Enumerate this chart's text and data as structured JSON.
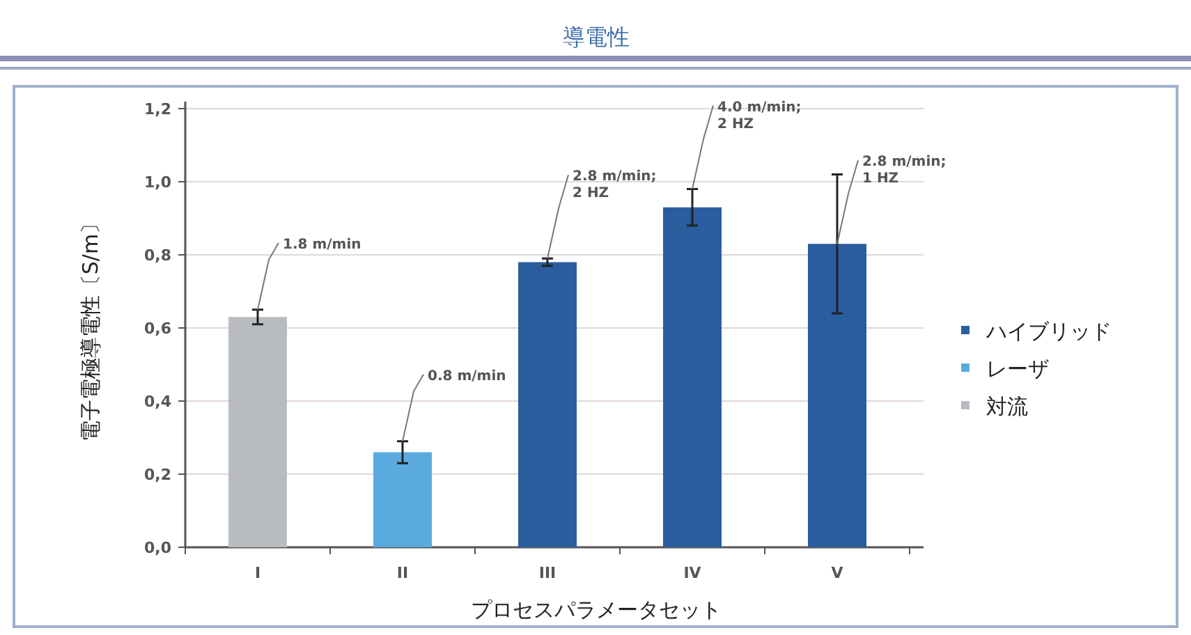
{
  "chart_data": {
    "type": "bar",
    "title": "導電性",
    "xlabel": "プロセスパラメータセット",
    "ylabel": "電子電極導電性〔S/m〕",
    "categories": [
      "I",
      "II",
      "III",
      "IV",
      "V"
    ],
    "series": [
      {
        "name": "ハイブリッド",
        "color": "#2a5d9e",
        "values": [
          null,
          null,
          0.78,
          0.93,
          0.83
        ],
        "errors": [
          null,
          null,
          0.01,
          0.05,
          0.19
        ]
      },
      {
        "name": "レーザ",
        "color": "#5aaae0",
        "values": [
          null,
          0.26,
          null,
          null,
          null
        ],
        "errors": [
          null,
          0.03,
          null,
          null,
          null
        ]
      },
      {
        "name": "対流",
        "color": "#b8bcc0",
        "values": [
          0.63,
          null,
          null,
          null,
          null
        ],
        "errors": [
          0.02,
          null,
          null,
          null,
          null
        ]
      }
    ],
    "ylim": [
      0,
      1.2
    ],
    "yticks": [
      {
        "value": 0,
        "label": "0,0"
      },
      {
        "value": 0.2,
        "label": "0,2"
      },
      {
        "value": 0.4,
        "label": "0,4"
      },
      {
        "value": 0.6,
        "label": "0,6"
      },
      {
        "value": 0.8,
        "label": "0,8"
      },
      {
        "value": 1.0,
        "label": "1,0"
      },
      {
        "value": 1.2,
        "label": "1,2"
      }
    ],
    "grid": "y",
    "legend": "right",
    "annotations": [
      {
        "text": "1.8 m/min",
        "x": "I",
        "y": 0.65
      },
      {
        "text": "0.8 m/min",
        "x": "II",
        "y": 0.29
      },
      {
        "text": "2.8 m/min; 2 HZ",
        "x": "III",
        "y": 0.79
      },
      {
        "text": "4.0 m/min; 2 HZ",
        "x": "IV",
        "y": 0.98
      },
      {
        "text": "2.8 m/min; 1 HZ",
        "x": "V",
        "y": 0.83
      }
    ]
  }
}
